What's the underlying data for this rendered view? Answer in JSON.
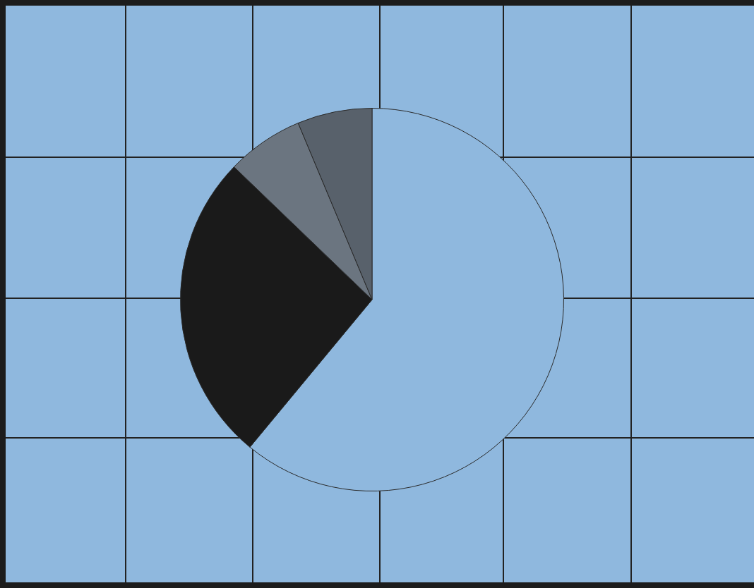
{
  "chart_data": {
    "type": "pie",
    "categories": [
      null,
      null,
      null,
      null
    ],
    "values": [
      61,
      26.2,
      6.5,
      6.3
    ],
    "colors": [
      "#8fb8de",
      "#1a1a1a",
      "#6b7580",
      "#58616b"
    ],
    "legend": false
  }
}
